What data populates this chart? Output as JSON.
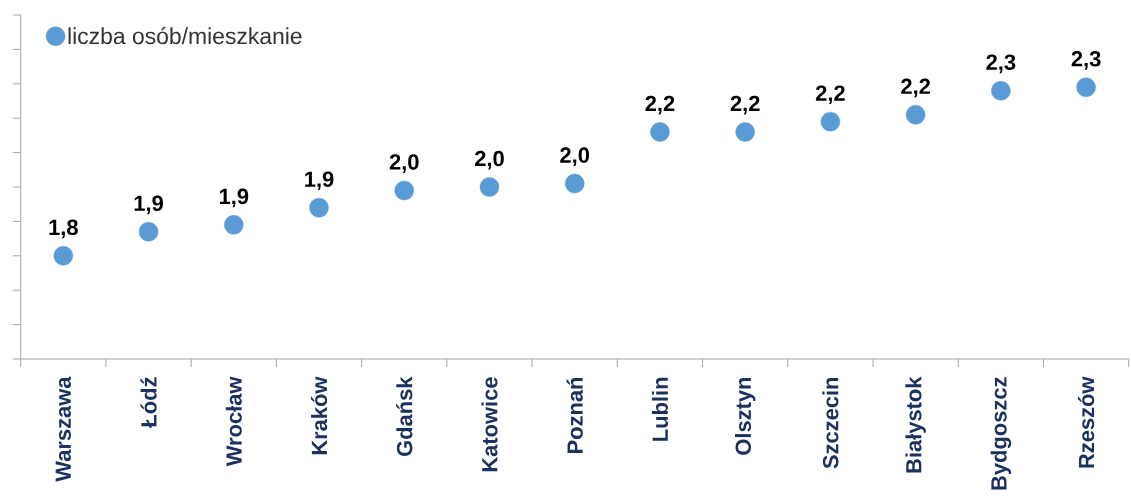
{
  "chart_data": {
    "type": "scatter",
    "categories": [
      "Warszawa",
      "Łódź",
      "Wrocław",
      "Kraków",
      "Gdańsk",
      "Katowice",
      "Poznań",
      "Lublin",
      "Olsztyn",
      "Szczecin",
      "Białystok",
      "Bydgoszcz",
      "Rzeszów"
    ],
    "series": [
      {
        "name": "liczba osób/mieszkanie",
        "color": "#5b9bd5",
        "values": [
          1.8,
          1.87,
          1.89,
          1.94,
          1.99,
          2.0,
          2.01,
          2.16,
          2.16,
          2.19,
          2.21,
          2.28,
          2.29
        ],
        "value_labels": [
          "1,8",
          "1,9",
          "1,9",
          "1,9",
          "2,0",
          "2,0",
          "2,0",
          "2,2",
          "2,2",
          "2,2",
          "2,2",
          "2,3",
          "2,3"
        ]
      }
    ],
    "ylim": [
      1.5,
      2.5
    ],
    "yticks": [
      1.5,
      1.6,
      1.7,
      1.8,
      1.9,
      2.0,
      2.1,
      2.2,
      2.3,
      2.4,
      2.5
    ],
    "tick_labels": "x",
    "legend": "top left",
    "marker": "circle"
  }
}
